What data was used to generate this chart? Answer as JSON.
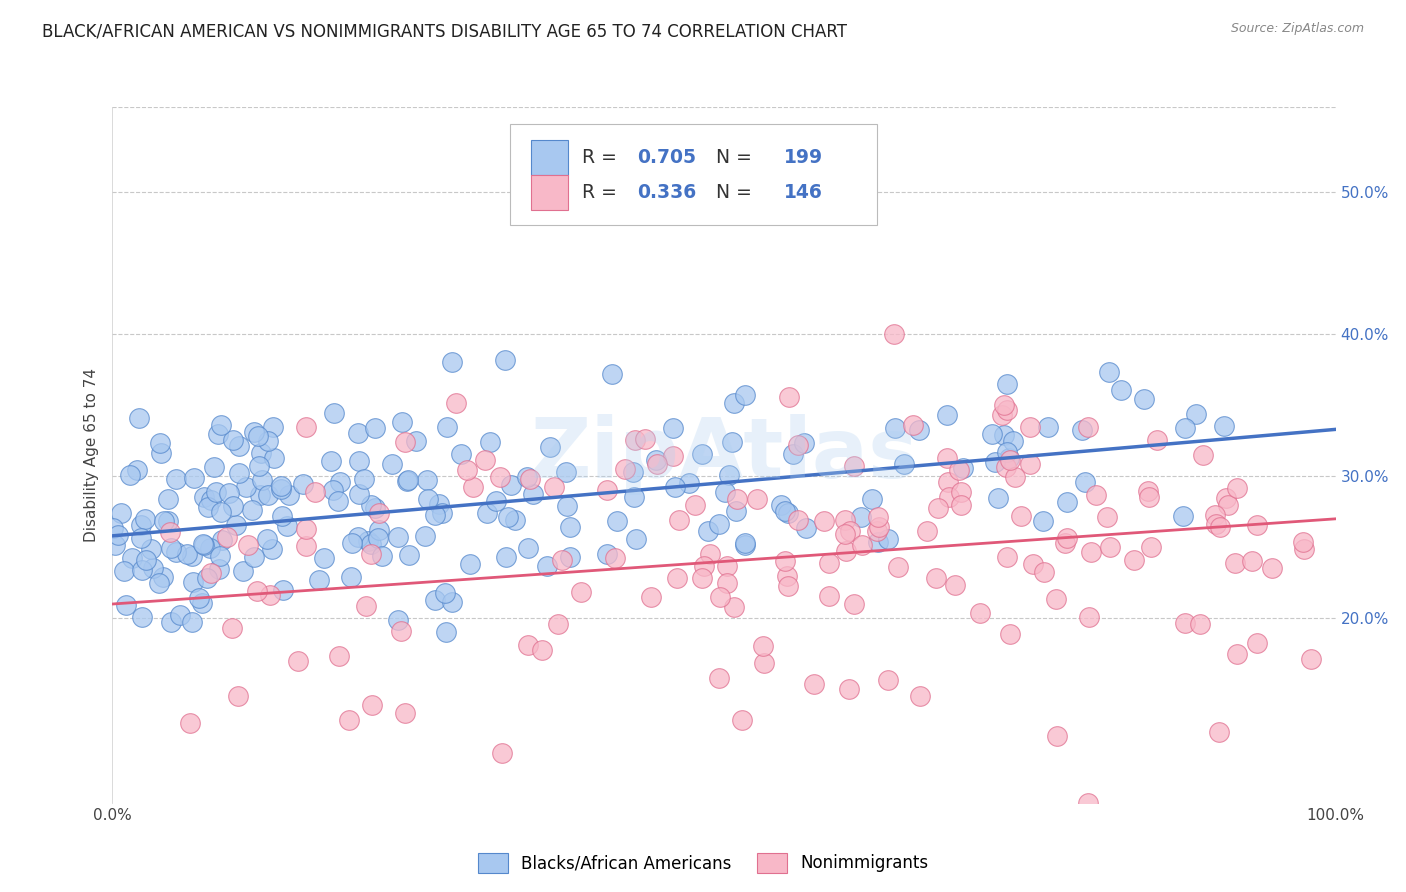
{
  "title": "BLACK/AFRICAN AMERICAN VS NONIMMIGRANTS DISABILITY AGE 65 TO 74 CORRELATION CHART",
  "source": "Source: ZipAtlas.com",
  "ylabel": "Disability Age 65 to 74",
  "xlim": [
    0.0,
    1.0
  ],
  "ylim": [
    0.07,
    0.56
  ],
  "xticks": [
    0.0,
    1.0
  ],
  "xtick_labels": [
    "0.0%",
    "100.0%"
  ],
  "yticks": [
    0.2,
    0.3,
    0.4,
    0.5
  ],
  "ytick_labels": [
    "20.0%",
    "30.0%",
    "40.0%",
    "50.0%"
  ],
  "blue_R": 0.705,
  "blue_N": 199,
  "pink_R": 0.336,
  "pink_N": 146,
  "blue_face_color": "#A8C8F0",
  "blue_edge_color": "#5588CC",
  "pink_face_color": "#F8B8C8",
  "pink_edge_color": "#E07090",
  "blue_line_color": "#4472C4",
  "pink_line_color": "#E05878",
  "legend_text_color": "#4472C4",
  "legend_label_blue": "Blacks/African Americans",
  "legend_label_pink": "Nonimmigrants",
  "background_color": "#FFFFFF",
  "grid_color": "#C8C8C8",
  "title_fontsize": 12,
  "axis_label_fontsize": 11,
  "tick_fontsize": 11,
  "watermark_text": "ZipAtlas",
  "blue_slope": 0.075,
  "blue_intercept": 0.258,
  "pink_slope": 0.06,
  "pink_intercept": 0.21,
  "marker_size": 200
}
